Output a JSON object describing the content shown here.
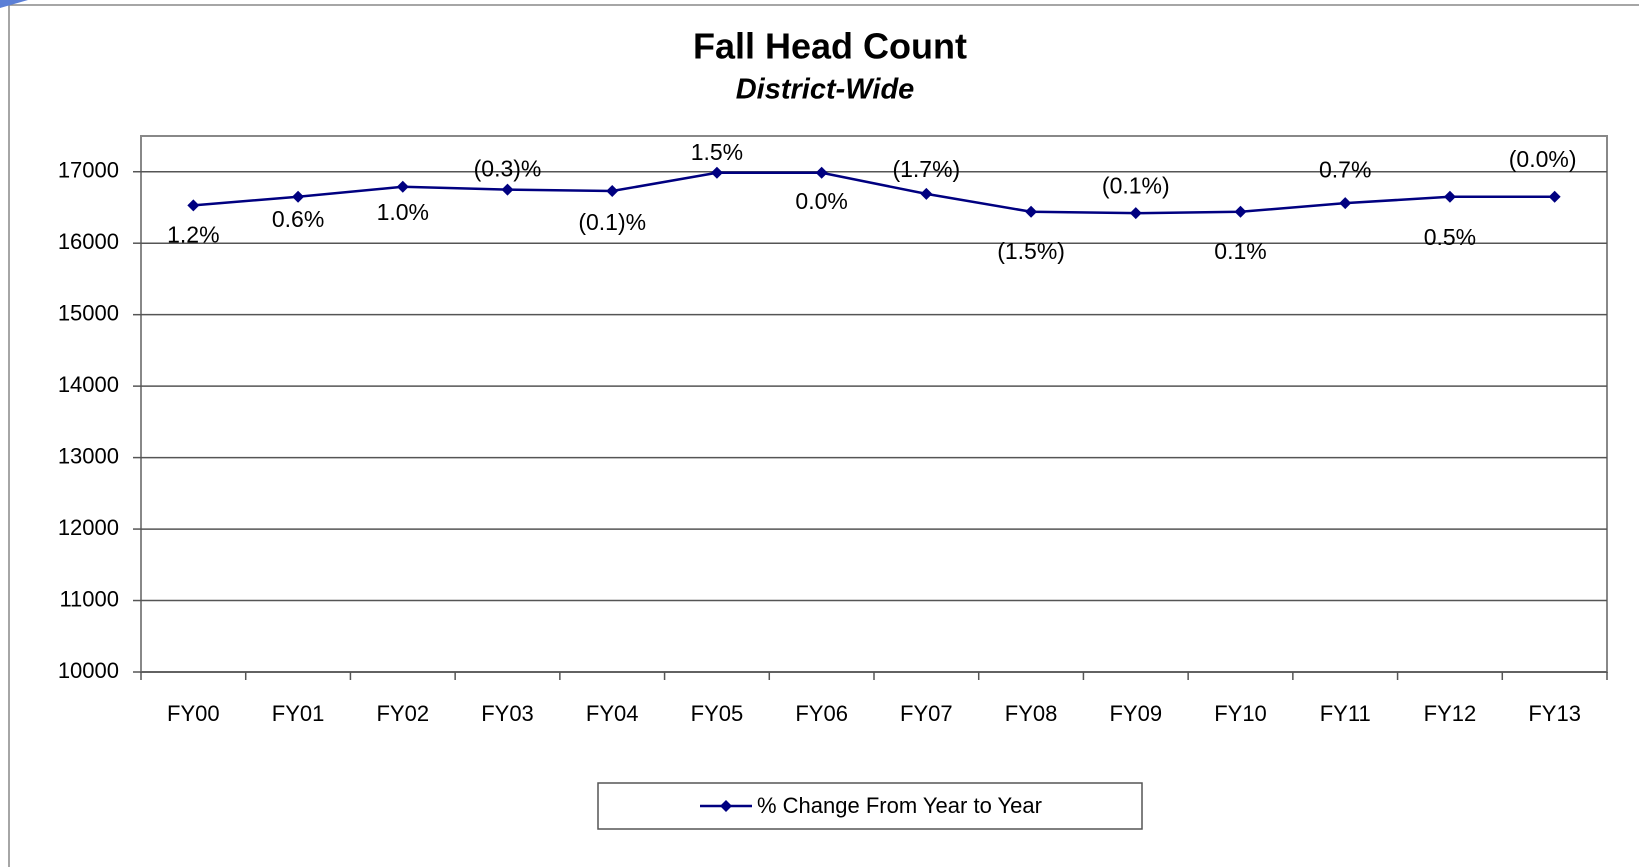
{
  "chart_data": {
    "type": "line",
    "title": "Fall Head Count",
    "subtitle": "District-Wide",
    "categories": [
      "FY00",
      "FY01",
      "FY02",
      "FY03",
      "FY04",
      "FY05",
      "FY06",
      "FY07",
      "FY08",
      "FY09",
      "FY10",
      "FY11",
      "FY12",
      "FY13"
    ],
    "series": [
      {
        "name": "% Change From Year to Year",
        "color": "#000080",
        "values": [
          16530,
          16650,
          16790,
          16750,
          16730,
          16985,
          16985,
          16690,
          16440,
          16420,
          16440,
          16560,
          16650,
          16650
        ]
      }
    ],
    "annotations": [
      "1.2%",
      "0.6%",
      "1.0%",
      "(0.3)%",
      "(0.1)%",
      "1.5%",
      "0.0%",
      "(1.7%)",
      "(1.5%)",
      "(0.1%)",
      "0.1%",
      "0.7%",
      "0.5%",
      "(0.0%)"
    ],
    "ylim": [
      10000,
      17500
    ],
    "yticks": [
      10000,
      11000,
      12000,
      13000,
      14000,
      15000,
      16000,
      17000
    ],
    "grid": true,
    "legend": "bottom"
  }
}
